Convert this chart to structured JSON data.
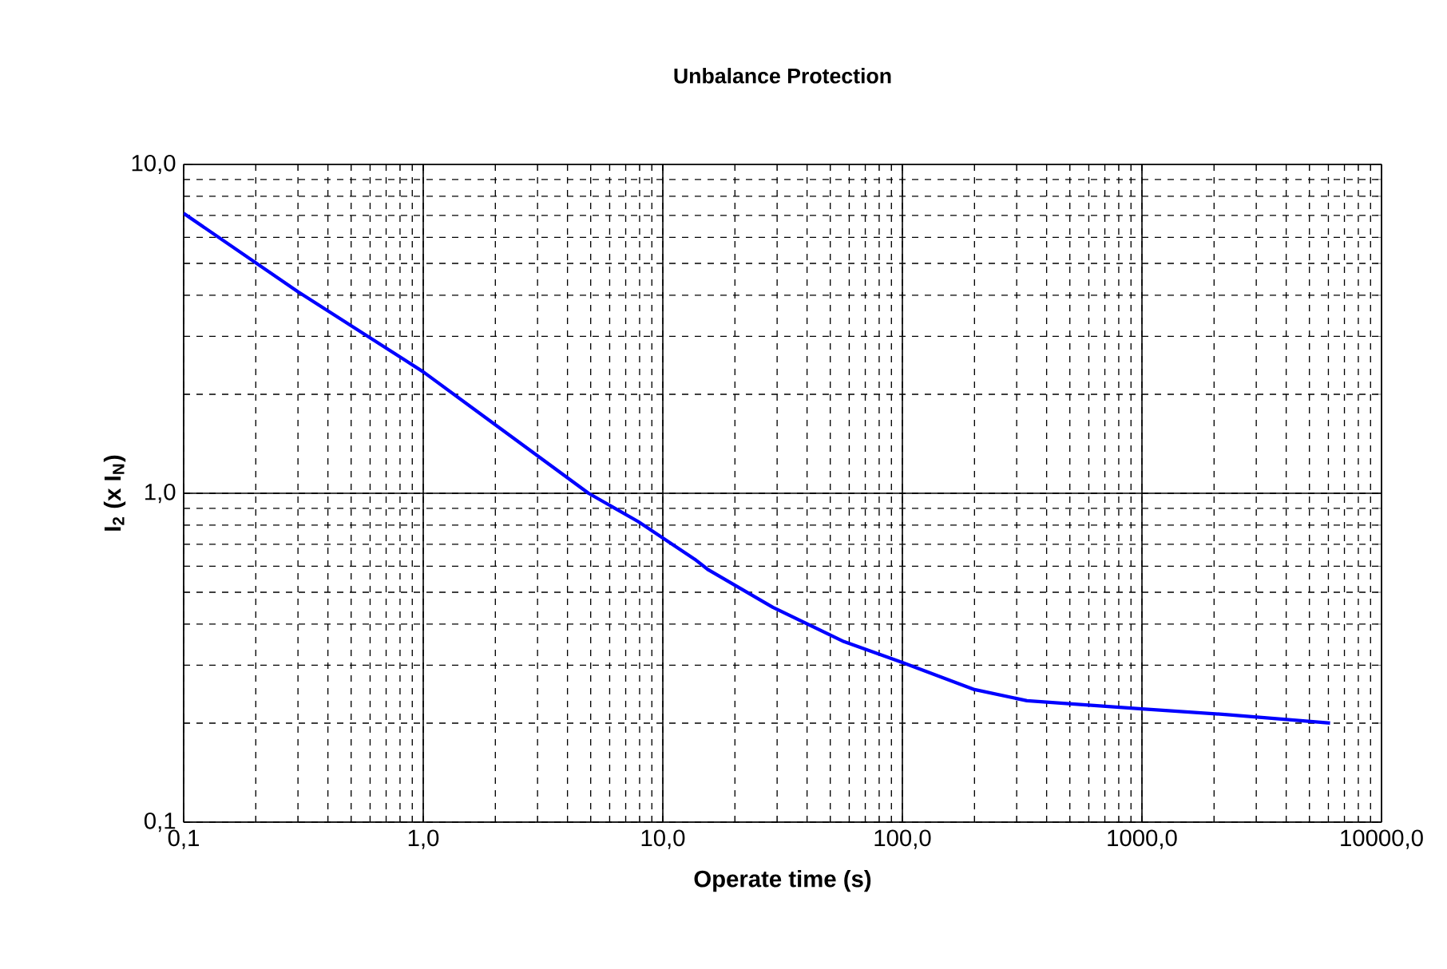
{
  "chart_data": {
    "type": "line",
    "title": "Unbalance Protection",
    "xlabel": "Operate time (s)",
    "ylabel": "I$_{2}$ (x I$_{N}$)",
    "log": "xy",
    "grid": true,
    "marker": "none",
    "line_style": "solid",
    "xlim": [
      0.1,
      10000
    ],
    "ylim": [
      0.1,
      10
    ],
    "xticks": [
      {
        "value": 0.1,
        "label": "0,1"
      },
      {
        "value": 1,
        "label": "1,0"
      },
      {
        "value": 10,
        "label": "10,0"
      },
      {
        "value": 100,
        "label": "100,0"
      },
      {
        "value": 1000,
        "label": "1000,0"
      },
      {
        "value": 10000,
        "label": "10000,0"
      }
    ],
    "yticks": [
      {
        "value": 0.1,
        "label": "0,1"
      },
      {
        "value": 1,
        "label": "1,0"
      },
      {
        "value": 10,
        "label": "10,0"
      }
    ],
    "series": [
      {
        "color": "#0000ff",
        "x": [
          0.1,
          0.3,
          1,
          4.9,
          7.9,
          13.6,
          15.5,
          28.8,
          57,
          100,
          200,
          331,
          1000,
          2330,
          6100
        ],
        "values": [
          7.1,
          4.1,
          2.34,
          1.0,
          0.82,
          0.63,
          0.585,
          0.45,
          0.354,
          0.306,
          0.253,
          0.234,
          0.221,
          0.212,
          0.2
        ]
      }
    ]
  }
}
